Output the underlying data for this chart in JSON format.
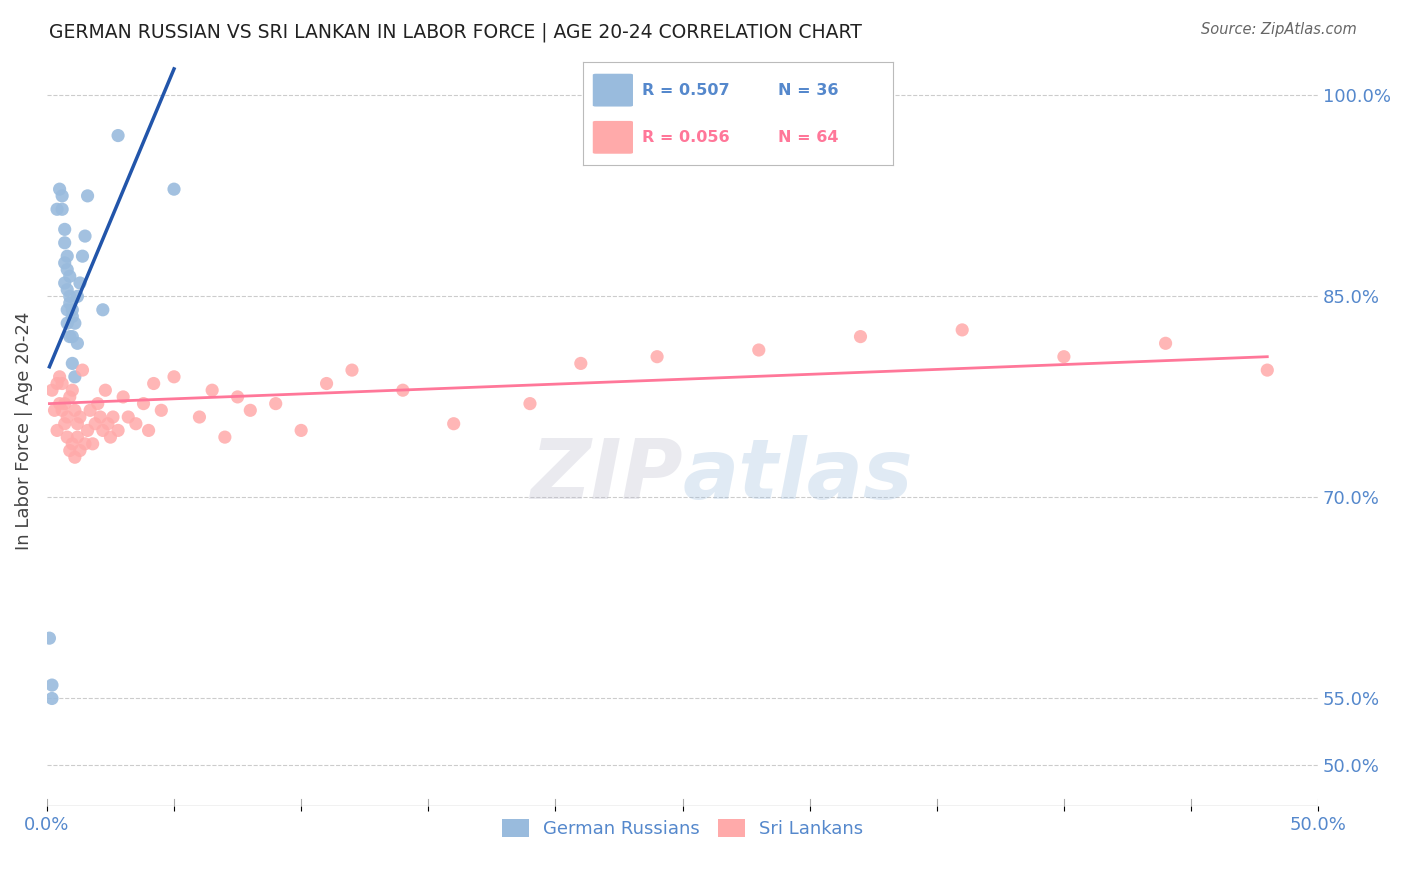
{
  "title": "GERMAN RUSSIAN VS SRI LANKAN IN LABOR FORCE | AGE 20-24 CORRELATION CHART",
  "source": "Source: ZipAtlas.com",
  "ylabel": "In Labor Force | Age 20-24",
  "xmin": 0.0,
  "xmax": 0.5,
  "ymin": 47.0,
  "ymax": 103.0,
  "watermark": "ZIPatlas",
  "blue_color": "#99BBDD",
  "pink_color": "#FFAAAA",
  "blue_line_color": "#2255AA",
  "pink_line_color": "#FF7799",
  "axis_color": "#5588CC",
  "grid_color": "#CCCCCC",
  "blue_scatter_x": [
    0.002,
    0.004,
    0.005,
    0.006,
    0.006,
    0.007,
    0.007,
    0.007,
    0.007,
    0.008,
    0.008,
    0.008,
    0.008,
    0.008,
    0.009,
    0.009,
    0.009,
    0.009,
    0.01,
    0.01,
    0.01,
    0.01,
    0.011,
    0.011,
    0.012,
    0.012,
    0.013,
    0.014,
    0.015,
    0.016,
    0.022,
    0.028,
    0.05,
    0.001,
    0.002
  ],
  "blue_scatter_y": [
    56.0,
    91.5,
    93.0,
    91.5,
    92.5,
    86.0,
    87.5,
    89.0,
    90.0,
    84.0,
    85.5,
    87.0,
    83.0,
    88.0,
    82.0,
    84.5,
    85.0,
    86.5,
    80.0,
    82.0,
    83.5,
    84.0,
    79.0,
    83.0,
    81.5,
    85.0,
    86.0,
    88.0,
    89.5,
    92.5,
    84.0,
    97.0,
    93.0,
    59.5,
    55.0
  ],
  "pink_scatter_x": [
    0.002,
    0.003,
    0.004,
    0.004,
    0.005,
    0.005,
    0.006,
    0.006,
    0.007,
    0.007,
    0.008,
    0.008,
    0.009,
    0.009,
    0.01,
    0.01,
    0.011,
    0.011,
    0.012,
    0.012,
    0.013,
    0.013,
    0.014,
    0.015,
    0.016,
    0.017,
    0.018,
    0.019,
    0.02,
    0.021,
    0.022,
    0.023,
    0.024,
    0.025,
    0.026,
    0.028,
    0.03,
    0.032,
    0.035,
    0.038,
    0.04,
    0.042,
    0.045,
    0.05,
    0.06,
    0.065,
    0.07,
    0.075,
    0.08,
    0.09,
    0.1,
    0.11,
    0.12,
    0.14,
    0.16,
    0.19,
    0.21,
    0.24,
    0.28,
    0.32,
    0.36,
    0.4,
    0.44,
    0.48
  ],
  "pink_scatter_y": [
    78.0,
    76.5,
    78.5,
    75.0,
    79.0,
    77.0,
    76.5,
    78.5,
    75.5,
    77.0,
    74.5,
    76.0,
    73.5,
    77.5,
    74.0,
    78.0,
    73.0,
    76.5,
    74.5,
    75.5,
    73.5,
    76.0,
    79.5,
    74.0,
    75.0,
    76.5,
    74.0,
    75.5,
    77.0,
    76.0,
    75.0,
    78.0,
    75.5,
    74.5,
    76.0,
    75.0,
    77.5,
    76.0,
    75.5,
    77.0,
    75.0,
    78.5,
    76.5,
    79.0,
    76.0,
    78.0,
    74.5,
    77.5,
    76.5,
    77.0,
    75.0,
    78.5,
    79.5,
    78.0,
    75.5,
    77.0,
    80.0,
    80.5,
    81.0,
    82.0,
    82.5,
    80.5,
    81.5,
    79.5
  ],
  "ytick_vals": [
    50.0,
    55.0,
    70.0,
    85.0,
    100.0
  ]
}
